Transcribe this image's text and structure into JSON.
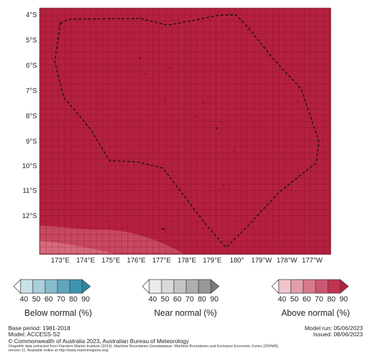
{
  "map": {
    "latitude_labels": [
      "4°S",
      "5°S",
      "6°S",
      "7°S",
      "8°S",
      "9°S",
      "10°S",
      "11°S",
      "12°S"
    ],
    "longitude_labels": [
      "173°E",
      "174°E",
      "175°E",
      "176°E",
      "177°E",
      "178°E",
      "179°E",
      "180°",
      "179°W",
      "178°W",
      "177°W"
    ],
    "field_color": "#b5203f",
    "low_band_color": "#c8485f",
    "boundary_style": "dashed black (Exclusive Economic Zone)"
  },
  "legends": [
    {
      "title": "Below normal (%)",
      "ticks": [
        "40",
        "50",
        "60",
        "70",
        "80",
        "90"
      ],
      "colors": [
        "#ffffff",
        "#c9e2ea",
        "#a8cfdc",
        "#86bccd",
        "#5fa6bc",
        "#3e95b0",
        "#2b8aa8"
      ]
    },
    {
      "title": "Near normal (%)",
      "ticks": [
        "40",
        "50",
        "60",
        "70",
        "80",
        "90"
      ],
      "colors": [
        "#ffffff",
        "#ececec",
        "#d9d9d9",
        "#c4c4c4",
        "#aeaeae",
        "#979797",
        "#7a7a7a"
      ]
    },
    {
      "title": "Above normal (%)",
      "ticks": [
        "40",
        "50",
        "60",
        "70",
        "80",
        "90"
      ],
      "colors": [
        "#ffffff",
        "#f0c5cd",
        "#e39eab",
        "#d87a8c",
        "#cc5670",
        "#c1344f",
        "#b5203f"
      ]
    }
  ],
  "footer": {
    "base_period": "Base period: 1981-2018",
    "model": "Model: ACCESS-S2",
    "copyright": "© Commonwealth of Australia 2023, Australian Bureau of Meteorology",
    "shapefile_line1": "Shapefile data extracted from Flanders Marine Institute (2019), Maritime Boundaries Geodatabase: Maritime Boundaries and Exclusive Economic Zones (200NM),",
    "shapefile_line2": "version 11. Available online at http://www.marineregions.org/",
    "model_run": "Model run: 05/06/2023",
    "issued": "Issued: 08/06/2023"
  }
}
